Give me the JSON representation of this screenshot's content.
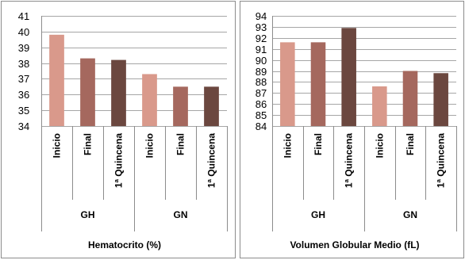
{
  "chart_data": [
    {
      "type": "bar",
      "title": "Hematocrito (%)",
      "ylim": [
        34,
        41
      ],
      "ystep": 1,
      "grid": true,
      "legend": "none",
      "groups": [
        "GH",
        "GN"
      ],
      "categories": [
        "Inicio",
        "Final",
        "1ª Quincena",
        "Inicio",
        "Final",
        "1ª Quincena"
      ],
      "values": [
        39.8,
        38.3,
        38.2,
        37.3,
        36.5,
        36.5
      ],
      "colors": [
        "#d9998b",
        "#a5685e",
        "#6b473f",
        "#d9998b",
        "#a5685e",
        "#6b473f"
      ]
    },
    {
      "type": "bar",
      "title": "Volumen Globular Medio (fL)",
      "ylim": [
        84,
        94
      ],
      "ystep": 1,
      "grid": true,
      "legend": "none",
      "groups": [
        "GH",
        "GN"
      ],
      "categories": [
        "Inicio",
        "Final",
        "1ª Quincena",
        "Inicio",
        "Final",
        "1ª Quincena"
      ],
      "values": [
        91.6,
        91.6,
        92.9,
        87.6,
        89.0,
        88.8
      ],
      "colors": [
        "#d9998b",
        "#a5685e",
        "#6b473f",
        "#d9998b",
        "#a5685e",
        "#6b473f"
      ]
    }
  ]
}
